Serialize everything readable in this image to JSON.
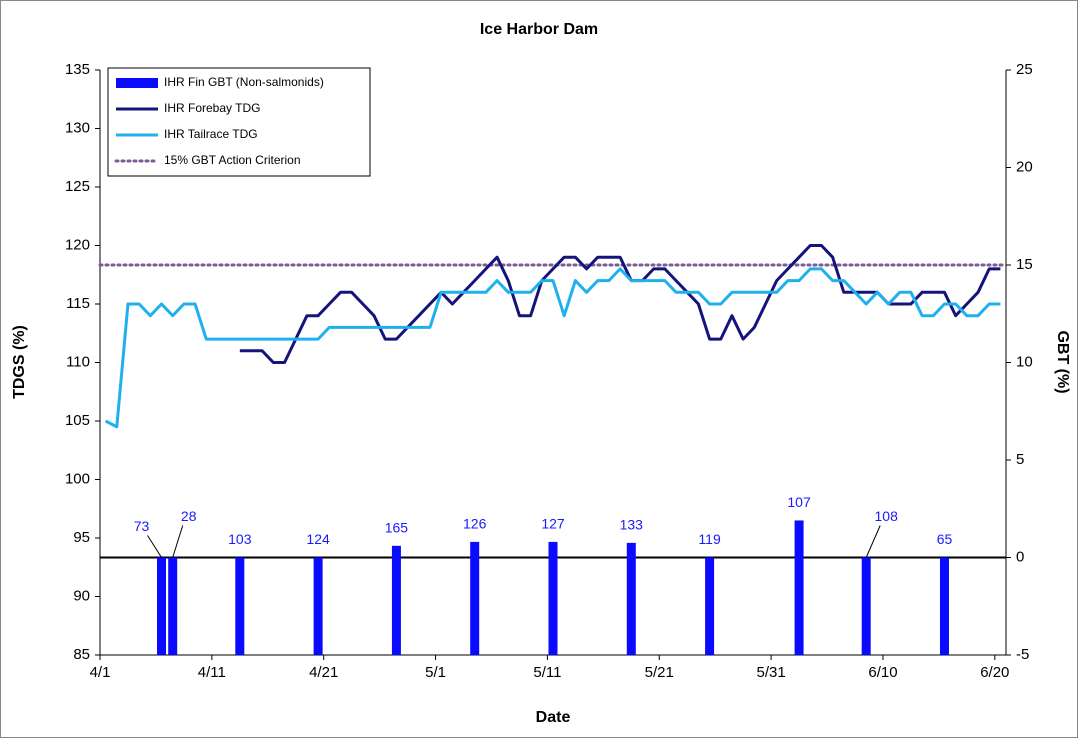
{
  "chart_data": {
    "type": "combo",
    "title": "Ice Harbor Dam",
    "x_label": "Date",
    "y_label": "TDGS (%)",
    "y2_label": "GBT (%)",
    "categories": [
      "4/1",
      null,
      null,
      null,
      null,
      null,
      null,
      null,
      null,
      null,
      "4/11",
      null,
      null,
      null,
      null,
      null,
      null,
      null,
      null,
      null,
      "4/21",
      null,
      null,
      null,
      null,
      null,
      null,
      null,
      null,
      null,
      "5/1",
      null,
      null,
      null,
      null,
      null,
      null,
      null,
      null,
      null,
      "5/11",
      null,
      null,
      null,
      null,
      null,
      null,
      null,
      null,
      null,
      "5/21",
      null,
      null,
      null,
      null,
      null,
      null,
      null,
      null,
      null,
      "5/31",
      null,
      null,
      null,
      null,
      null,
      null,
      null,
      null,
      null,
      "6/10",
      null,
      null,
      null,
      null,
      null,
      null,
      null,
      null,
      null,
      "6/20"
    ],
    "ylim": [
      85,
      135
    ],
    "yticks": [
      85,
      90,
      95,
      100,
      105,
      110,
      115,
      120,
      125,
      130,
      135
    ],
    "y2lim": [
      -5,
      25
    ],
    "y2ticks": [
      -5,
      0,
      5,
      10,
      15,
      20,
      25
    ],
    "legend": "top-left",
    "series": [
      {
        "name": "IHR Fin GBT (Non-salmonids)",
        "type": "bar",
        "axis": "y2",
        "color": "#0a0aff",
        "values": [
          null,
          null,
          null,
          null,
          null,
          0,
          0,
          null,
          null,
          null,
          null,
          null,
          0,
          null,
          null,
          null,
          null,
          null,
          null,
          0,
          null,
          null,
          null,
          null,
          null,
          null,
          0.6,
          null,
          null,
          null,
          null,
          null,
          null,
          0.8,
          null,
          null,
          null,
          null,
          null,
          null,
          0.8,
          null,
          null,
          null,
          null,
          null,
          null,
          0.75,
          null,
          null,
          null,
          null,
          null,
          null,
          0,
          null,
          null,
          null,
          null,
          null,
          null,
          null,
          1.9,
          null,
          null,
          null,
          null,
          null,
          0,
          null,
          null,
          null,
          null,
          null,
          null,
          0,
          null,
          null,
          null,
          null,
          null
        ],
        "n": [
          null,
          null,
          null,
          null,
          null,
          73,
          28,
          null,
          null,
          null,
          null,
          null,
          103,
          null,
          null,
          null,
          null,
          null,
          null,
          124,
          null,
          null,
          null,
          null,
          null,
          null,
          165,
          null,
          null,
          null,
          null,
          null,
          null,
          126,
          null,
          null,
          null,
          null,
          null,
          null,
          127,
          null,
          null,
          null,
          null,
          null,
          null,
          133,
          null,
          null,
          null,
          null,
          null,
          null,
          119,
          null,
          null,
          null,
          null,
          null,
          null,
          null,
          107,
          null,
          null,
          null,
          null,
          null,
          108,
          null,
          null,
          null,
          null,
          null,
          null,
          65,
          null,
          null,
          null,
          null,
          null
        ]
      },
      {
        "name": "IHR Forebay TDG",
        "type": "line",
        "axis": "y",
        "color": "#14147a",
        "values": [
          null,
          null,
          null,
          null,
          null,
          null,
          null,
          null,
          null,
          null,
          null,
          null,
          111,
          111,
          111,
          110,
          110,
          112,
          114,
          114,
          115,
          116,
          116,
          115,
          114,
          112,
          112,
          113,
          114,
          115,
          116,
          115,
          116,
          117,
          118,
          119,
          117,
          114,
          114,
          117,
          118,
          119,
          119,
          118,
          119,
          119,
          119,
          117,
          117,
          118,
          118,
          117,
          116,
          115,
          112,
          112,
          114,
          112,
          113,
          115,
          117,
          118,
          119,
          120,
          120,
          119,
          116,
          116,
          116,
          116,
          115,
          115,
          115,
          116,
          116,
          116,
          114,
          115,
          116,
          118,
          118
        ]
      },
      {
        "name": "IHR Tailrace TDG",
        "type": "line",
        "axis": "y",
        "color": "#1fb1ee",
        "values": [
          105,
          104.5,
          115,
          115,
          114,
          115,
          114,
          115,
          115,
          112,
          112,
          112,
          112,
          112,
          112,
          112,
          112,
          112,
          112,
          112,
          113,
          113,
          113,
          113,
          113,
          113,
          113,
          113,
          113,
          113,
          116,
          116,
          116,
          116,
          116,
          117,
          116,
          116,
          116,
          117,
          117,
          114,
          117,
          116,
          117,
          117,
          118,
          117,
          117,
          117,
          117,
          116,
          116,
          116,
          115,
          115,
          116,
          116,
          116,
          116,
          116,
          117,
          117,
          118,
          118,
          117,
          117,
          116,
          115,
          116,
          115,
          116,
          116,
          114,
          114,
          115,
          115,
          114,
          114,
          115,
          115
        ]
      }
    ],
    "reference_lines": [
      {
        "name": "15% GBT Action Criterion",
        "value": 15,
        "axis": "y2",
        "color": "#7a5c96"
      }
    ]
  }
}
